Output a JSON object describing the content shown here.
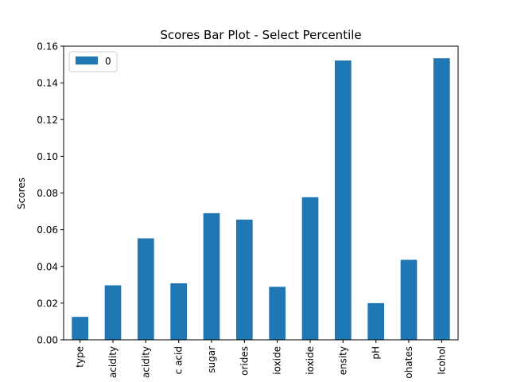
{
  "chart_data": {
    "type": "bar",
    "title": "Scores Bar Plot - Select Percentile",
    "xlabel": "",
    "ylabel": "Scores",
    "ylim": [
      0,
      0.16
    ],
    "yticks": [
      "0.00",
      "0.02",
      "0.04",
      "0.06",
      "0.08",
      "0.10",
      "0.12",
      "0.14",
      "0.16"
    ],
    "categories": [
      "type",
      "acidity",
      "acidity",
      "c acid",
      "sugar",
      "orides",
      "ioxide",
      "ioxide",
      "ensity",
      "pH",
      "ohates",
      "lcohol"
    ],
    "series": [
      {
        "name": "0",
        "values": [
          0.0125,
          0.0297,
          0.0553,
          0.0308,
          0.069,
          0.0655,
          0.0289,
          0.0777,
          0.1522,
          0.02,
          0.0436,
          0.1534
        ]
      }
    ],
    "bar_color": "#1f77b4",
    "legend_position": "top-left",
    "grid": false
  }
}
